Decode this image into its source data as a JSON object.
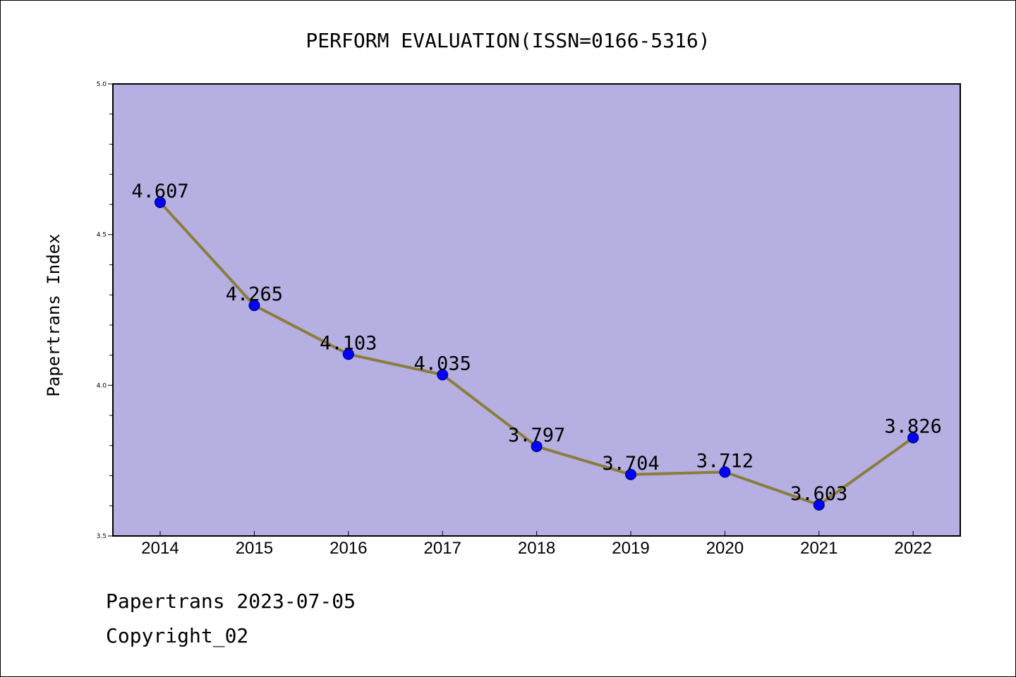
{
  "chart_data": {
    "type": "line",
    "title": "PERFORM EVALUATION(ISSN=0166-5316)",
    "xlabel": "",
    "ylabel": "Papertrans Index",
    "categories": [
      "2014",
      "2015",
      "2016",
      "2017",
      "2018",
      "2019",
      "2020",
      "2021",
      "2022"
    ],
    "series": [
      {
        "values": [
          4.607,
          4.265,
          4.103,
          4.035,
          3.797,
          3.704,
          3.712,
          3.603,
          3.826
        ],
        "data_labels": [
          "4.607",
          "4.265",
          "4.103",
          "4.035",
          "3.797",
          "3.704",
          "3.712",
          "3.603",
          "3.826"
        ]
      }
    ],
    "ylim": [
      3.5,
      5.0
    ],
    "yticks": [
      "3.5",
      "4.0",
      "4.5",
      "5.0"
    ],
    "grid": false,
    "colors": {
      "plot_background": "#b5afe2",
      "line": "#8b7d3c",
      "marker": "#0000ff"
    }
  },
  "footer": {
    "line1": "Papertrans 2023-07-05",
    "line2": "Copyright_02"
  }
}
